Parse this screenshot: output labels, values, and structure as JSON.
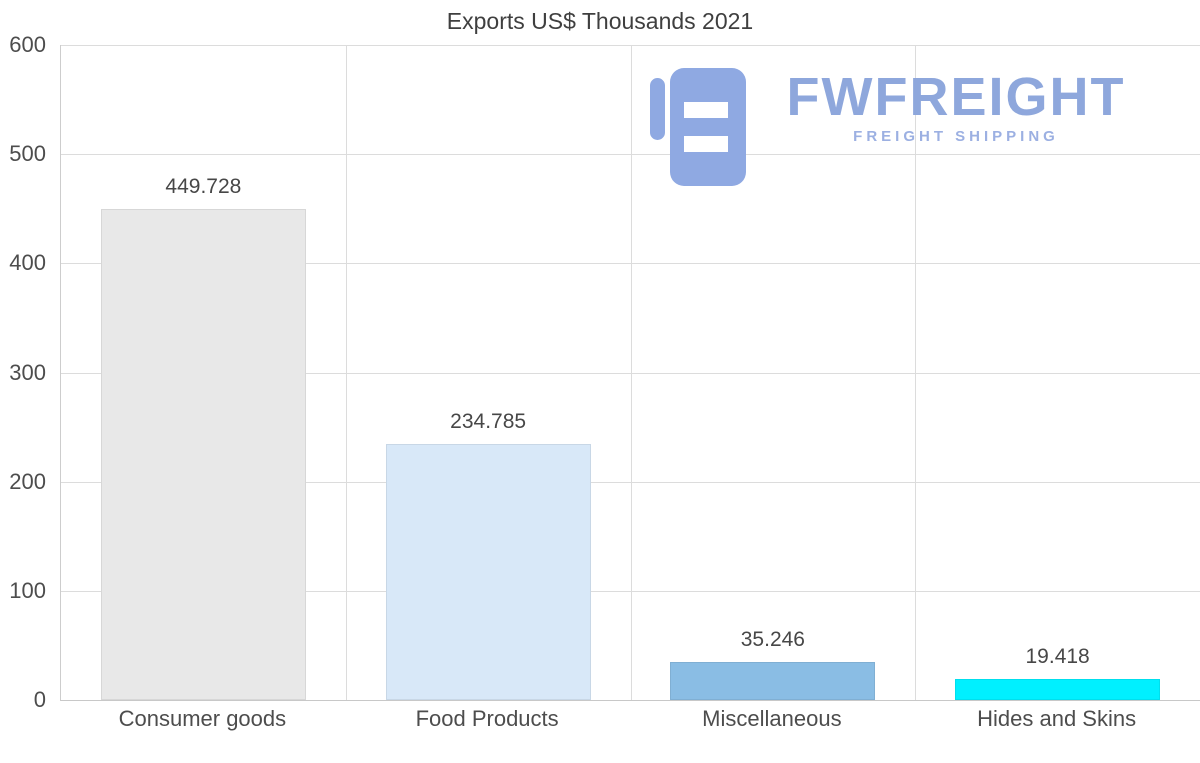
{
  "chart_data": {
    "type": "bar",
    "title": "Exports US$ Thousands 2021",
    "categories": [
      "Consumer goods",
      "Food Products",
      "Miscellaneous",
      "Hides and Skins"
    ],
    "values": [
      449.728,
      234.785,
      35.246,
      19.418
    ],
    "value_labels": [
      "449.728",
      "234.785",
      "35.246",
      "19.418"
    ],
    "bar_colors": [
      "#e8e8e8",
      "#d8e8f8",
      "#8abde4",
      "#00f0ff"
    ],
    "xlabel": "",
    "ylabel": "",
    "ylim": [
      0,
      600
    ],
    "yticks": [
      0,
      100,
      200,
      300,
      400,
      500,
      600
    ],
    "grid": true,
    "legend": false,
    "grid_color": "#dcdcdc",
    "text_color": "#4d4d4d"
  },
  "watermark": {
    "brand": "FWFREIGHT",
    "tagline": "FREIGHT SHIPPING",
    "color": "#8ea7dc"
  }
}
